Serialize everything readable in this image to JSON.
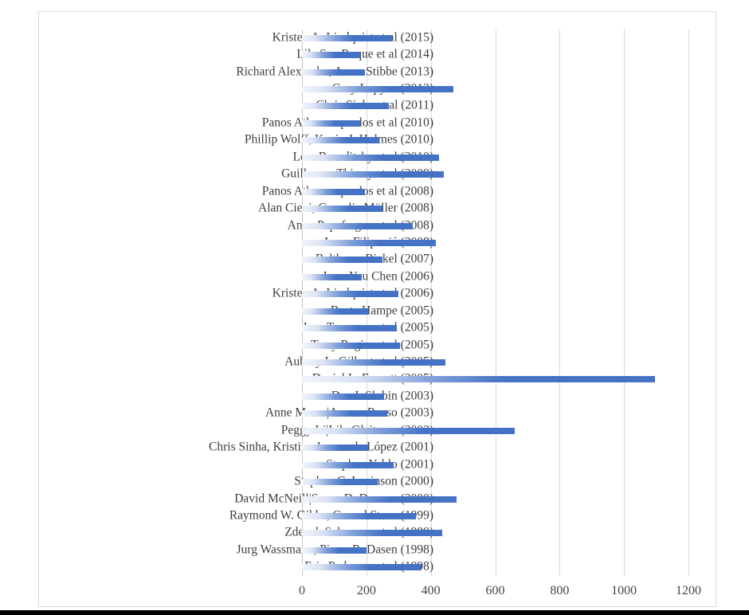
{
  "chart_data": {
    "type": "bar",
    "orientation": "horizontal",
    "title": "",
    "xlabel": "",
    "ylabel": "",
    "categories": [
      "Kristen A. Lindquist et al (2015)",
      "Lila San Roque et al (2014)",
      "Richard Alexander, Arran Stibbe (2013)",
      "Gary Lupyan (2012)",
      "Chris Sinha et al (2011)",
      "Panos Athanasopoulos et al (2010)",
      "Phillip Wolff, Kevin J. Holmes (2010)",
      "Lera Boroditsky et al (2010)",
      "Guillaume Thierry et al (2009)",
      "Panos Athanasopoulos et al (2008)",
      "Alan Cieni, Cornelia Müller (2008)",
      "Anna Papafragou et al (2008)",
      "Luna Filipović (2008)",
      "Balthasar Bickel (2007)",
      "Jenn-Yeu Chen (2006)",
      "Kristen A. Lindquist et al (2006)",
      "Beate Hampe (2005)",
      "Jose Tummers et al (2005)",
      "Terry Regier et al (2005)",
      "Aubrey L. Gilbert et al (2005)",
      "Daniel L. Everett (2005)",
      "Dan I. Slobin (2003)",
      "Anne Maass|Aurore Russo (2003)",
      "Peggy Li|Lila Gleitman (2002)",
      "Chris Sinha, Kristine Jensen de López (2001)",
      "Stephen Yablo (2001)",
      "Stephen C. Levinson (2000)",
      "David McNeill|Susan D. Duncan (2000)",
      "Raymond W. Gibbs, Gerard Steen (1999)",
      "Zdenek Salzmann et al (1999)",
      "Jurg Wassmann, Pierre R. Dasen (1998)",
      "Eric Pederson et al (1998)"
    ],
    "values": [
      280,
      180,
      195,
      470,
      270,
      180,
      240,
      425,
      440,
      195,
      250,
      345,
      415,
      250,
      185,
      300,
      205,
      295,
      305,
      445,
      1095,
      255,
      265,
      660,
      205,
      285,
      235,
      480,
      355,
      435,
      200,
      370
    ],
    "x_ticks": [
      0,
      200,
      400,
      600,
      800,
      1000,
      1200
    ],
    "x_tick_labels": [
      "0",
      "200",
      "400",
      "600",
      "800",
      "1000",
      "1200"
    ],
    "xlim": [
      0,
      1240
    ],
    "grid": true,
    "legend": "none",
    "bar_color": "#4472c4",
    "bar_gradient_start": "#f0f4fb",
    "gridline_color": "#d9d9d9",
    "label_color": "#3d3d3d",
    "frame_border_color": "#d9d9d9",
    "bottom_bar_color": "#000000"
  }
}
